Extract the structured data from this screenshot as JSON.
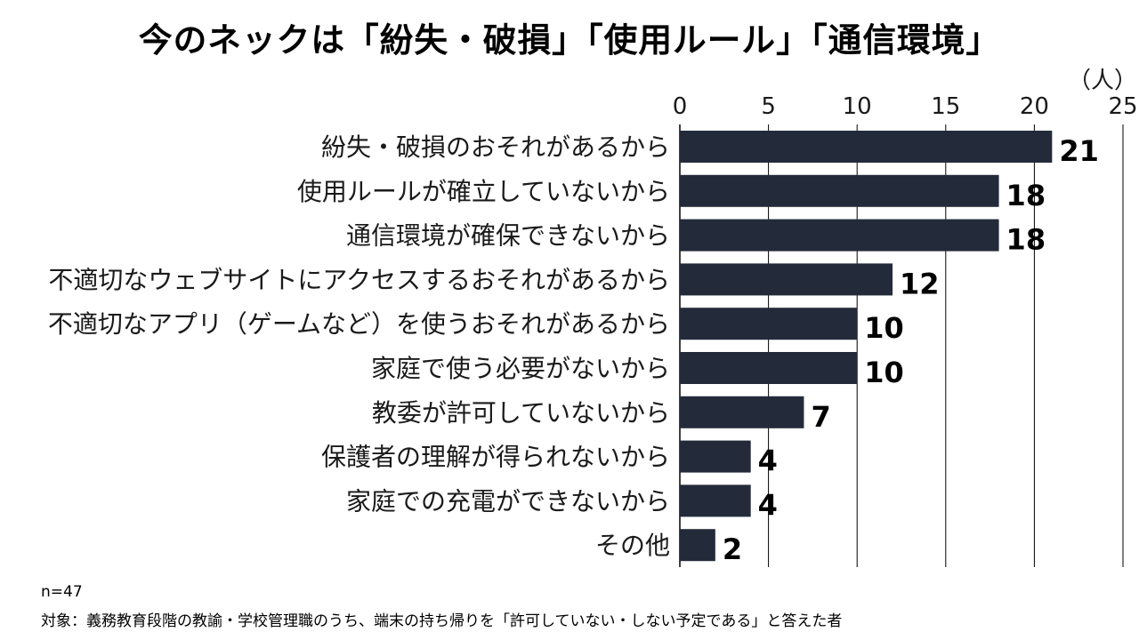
{
  "chart_data": {
    "type": "bar",
    "orientation": "horizontal",
    "title": "今のネックは「紛失・破損」「使用ルール」「通信環境」",
    "unit": "（人）",
    "categories": [
      "紛失・破損のおそれがあるから",
      "使用ルールが確立していないから",
      "通信環境が確保できないから",
      "不適切なウェブサイトにアクセスするおそれがあるから",
      "不適切なアプリ（ゲームなど）を使うおそれがあるから",
      "家庭で使う必要がないから",
      "教委が許可していないから",
      "保護者の理解が得られないから",
      "家庭での充電ができないから",
      "その他"
    ],
    "values": [
      21,
      18,
      18,
      12,
      10,
      10,
      7,
      4,
      4,
      2
    ],
    "xlim": [
      0,
      25
    ],
    "xticks": [
      0,
      5,
      10,
      15,
      20,
      25
    ],
    "x_axis_position": "top",
    "grid": true,
    "bar_color": "#232b3a",
    "grid_color": "#000000"
  },
  "footnotes": {
    "n": "n=47",
    "target": "対象：義務教育段階の教諭・学校管理職のうち、端末の持ち帰りを「許可していない・しない予定である」と答えた者"
  }
}
